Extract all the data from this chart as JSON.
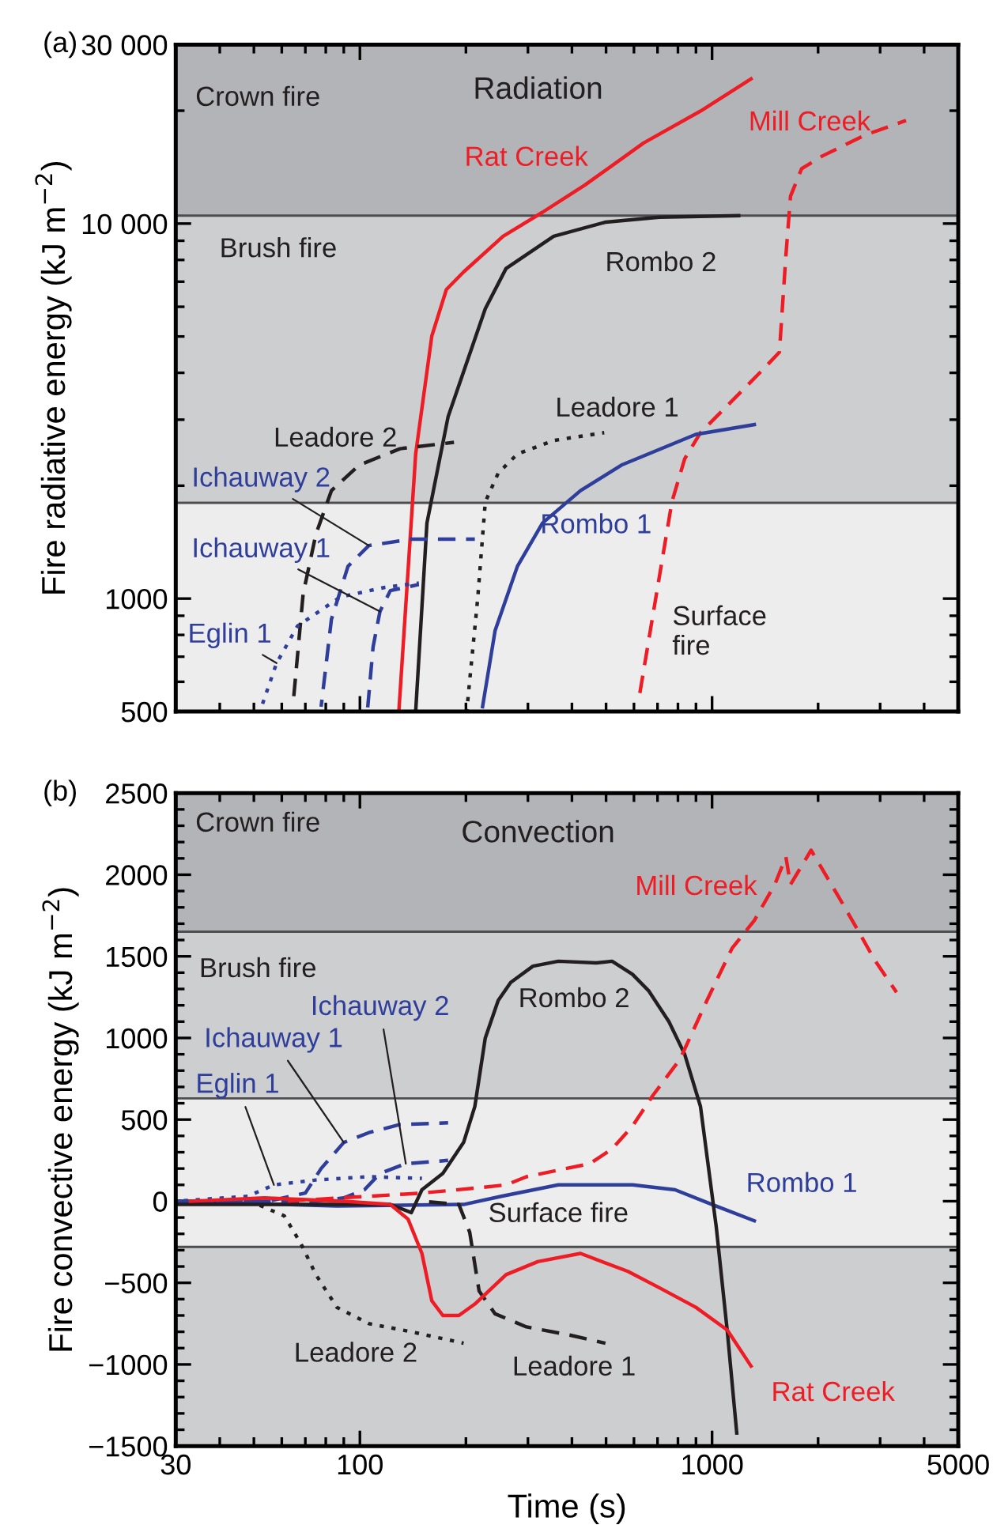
{
  "chart_data": [
    {
      "type": "line",
      "title": "(a)",
      "ylabel": "Fire radiative energy (kJ m$^{−2}$)",
      "log": "xy",
      "tick_labels": "y",
      "xlim": [
        30,
        5000
      ],
      "xticks": [
        30,
        100,
        1000,
        5000
      ],
      "ylim": [
        500,
        30000
      ],
      "yticks": [
        500,
        1000,
        {
          "value": 10000,
          "label": "10 000"
        },
        {
          "value": 30000,
          "label": "30 000"
        }
      ],
      "bands": [
        {
          "axis": "y",
          "from": 10500,
          "to": 30000,
          "label": "Crown fire",
          "color": "#b3b4b7"
        },
        {
          "axis": "y",
          "from": 1800,
          "to": 10500,
          "label": "Brush fire",
          "color": "#cdced0"
        },
        {
          "axis": "y",
          "from": 500,
          "to": 1800,
          "label": "Surface\nfire",
          "color": "#ededed"
        }
      ],
      "series": [
        {
          "name": "Rat Creek",
          "color": "#ee1c25",
          "line_style": "solid",
          "x": [
            129,
            144,
            160,
            176,
            197,
            255,
            330,
            436,
            639,
            927,
            1290
          ],
          "values": [
            500,
            2430,
            5010,
            6670,
            7430,
            9250,
            10720,
            12680,
            16400,
            19950,
            24300
          ]
        },
        {
          "name": "Rombo 2",
          "color": "#231f20",
          "line_style": "solid",
          "x": [
            144,
            155,
            178,
            227,
            260,
            355,
            499,
            708,
            1190
          ],
          "values": [
            500,
            1590,
            3055,
            5930,
            7590,
            9250,
            10090,
            10400,
            10500
          ]
        },
        {
          "name": "Mill Creek",
          "color": "#ee1c25",
          "line_style": "dashed",
          "x": [
            620,
            708,
            769,
            836,
            927,
            1105,
            1387,
            1553,
            1620,
            1670,
            1795,
            2055,
            2717,
            3555
          ],
          "values": [
            542,
            1140,
            1810,
            2360,
            2770,
            3270,
            4060,
            4540,
            8200,
            11830,
            14000,
            15140,
            17220,
            18840
          ]
        },
        {
          "name": "Leadore 1",
          "color": "#231f20",
          "line_style": "dotted",
          "x": [
            201,
            216,
            227,
            247,
            280,
            355,
            494
          ],
          "values": [
            500,
            1000,
            1810,
            2160,
            2430,
            2640,
            2770
          ]
        },
        {
          "name": "Rombo 1",
          "color": "#2e3e9a",
          "line_style": "solid",
          "x": [
            223,
            242,
            280,
            330,
            423,
            553,
            899,
            1318
          ],
          "values": [
            515,
            821,
            1219,
            1590,
            1940,
            2270,
            2740,
            2910
          ]
        },
        {
          "name": "Leadore 2",
          "color": "#231f20",
          "line_style": "dashed",
          "x": [
            64.5,
            69,
            75,
            83,
            99.5,
            130,
            185
          ],
          "values": [
            515,
            1030,
            1485,
            1940,
            2270,
            2510,
            2610
          ]
        },
        {
          "name": "Ichauway 2",
          "color": "#2e3e9a",
          "line_style": "dashed",
          "x": [
            77.6,
            83,
            92.5,
            106,
            140,
            212
          ],
          "values": [
            515,
            880,
            1219,
            1385,
            1440,
            1440
          ]
        },
        {
          "name": "Ichauway 1",
          "color": "#2e3e9a",
          "line_style": "dashed",
          "x": [
            105,
            109,
            114,
            122,
            147
          ],
          "values": [
            500,
            743,
            924,
            1050,
            1090
          ]
        },
        {
          "name": "Eglin 1",
          "color": "#2e3e9a",
          "line_style": "dotted",
          "x": [
            52,
            58,
            66.5,
            88,
            117,
            147
          ],
          "values": [
            500,
            673,
            845,
            1010,
            1070,
            1100
          ]
        }
      ],
      "annotations": [
        "Radiation"
      ]
    },
    {
      "type": "line",
      "title": "(b)",
      "ylabel": "Fire convective energy (kJ m$^{−2}$)",
      "xlabel": "Time (s)",
      "log": "x",
      "xlim": [
        30,
        5000
      ],
      "xticks": [
        30,
        100,
        1000,
        5000
      ],
      "ylim": [
        -1500,
        2500
      ],
      "yticks": [
        -1500,
        -1000,
        -500,
        0,
        500,
        1000,
        1500,
        2000,
        2500
      ],
      "bands": [
        {
          "axis": "y",
          "from": 1650,
          "to": 2500,
          "label": "Crown fire",
          "color": "#b3b4b7"
        },
        {
          "axis": "y",
          "from": -1500,
          "to": 1650,
          "label": "Brush fire",
          "color": "#cdced0"
        },
        {
          "axis": "y",
          "from": -280,
          "to": 630,
          "label": "Surface fire",
          "color": "#ededed"
        }
      ],
      "series": [
        {
          "name": "Rombo 1",
          "color": "#2e3e9a",
          "line_style": "solid",
          "x": [
            30,
            86,
            197,
            252,
            366,
            594,
            785,
            1000,
            1318
          ],
          "values": [
            0,
            -30,
            -20,
            30,
            100,
            100,
            70,
            -20,
            -120
          ]
        },
        {
          "name": "Leadore 2",
          "color": "#231f20",
          "line_style": "dotted",
          "x": [
            30,
            50,
            61,
            68,
            75,
            86,
            106,
            140,
            197
          ],
          "values": [
            0,
            -10,
            -90,
            -260,
            -450,
            -650,
            -750,
            -800,
            -870
          ]
        },
        {
          "name": "Leadore 1",
          "color": "#231f20",
          "line_style": "dashed",
          "x": [
            150,
            191,
            205,
            218,
            242,
            297,
            394,
            498
          ],
          "values": [
            0,
            -20,
            -190,
            -550,
            -690,
            -770,
            -820,
            -870
          ]
        },
        {
          "name": "Ichauway 1",
          "color": "#2e3e9a",
          "line_style": "dashed",
          "x": [
            30,
            55,
            70,
            77.6,
            90,
            106,
            130,
            178
          ],
          "values": [
            0,
            0,
            50,
            200,
            360,
            420,
            470,
            480
          ]
        },
        {
          "name": "Ichauway 2",
          "color": "#2e3e9a",
          "line_style": "dashed",
          "x": [
            30,
            75,
            90,
            103,
            114,
            135,
            178
          ],
          "values": [
            0,
            0,
            20,
            70,
            170,
            230,
            250
          ]
        },
        {
          "name": "Eglin 1",
          "color": "#2e3e9a",
          "line_style": "dotted",
          "x": [
            30,
            48,
            57,
            75,
            106,
            150
          ],
          "values": [
            0,
            30,
            100,
            130,
            150,
            140
          ]
        },
        {
          "name": "Rombo 2",
          "color": "#231f20",
          "line_style": "solid",
          "x": [
            30,
            122,
            140,
            150,
            172,
            197,
            212,
            227,
            247,
            268,
            310,
            366,
            469,
            520,
            594,
            660,
            754,
            836,
            927,
            1028,
            1105,
            1175
          ],
          "values": [
            -20,
            -20,
            -70,
            70,
            170,
            360,
            580,
            1000,
            1230,
            1340,
            1440,
            1470,
            1460,
            1470,
            1390,
            1290,
            1100,
            900,
            580,
            -160,
            -800,
            -1420
          ]
        },
        {
          "name": "Mill Creek",
          "color": "#ee1c25",
          "line_style": "dashed",
          "x": [
            61,
            106,
            150,
            212,
            260,
            297,
            450,
            520,
            594,
            680,
            811,
            967,
            1140,
            1318,
            1507,
            1620,
            1670,
            1910,
            2280,
            2610,
            2890,
            3340
          ],
          "values": [
            0,
            30,
            50,
            80,
            100,
            150,
            230,
            320,
            460,
            650,
            870,
            1230,
            1550,
            1720,
            1940,
            2110,
            1940,
            2150,
            1870,
            1650,
            1480,
            1280
          ]
        },
        {
          "name": "Rat Creek",
          "color": "#ee1c25",
          "line_style": "solid",
          "x": [
            33,
            53.5,
            90,
            122,
            137,
            150,
            160,
            172,
            191,
            212,
            260,
            320,
            423,
            577,
            708,
            899,
            1105,
            1290
          ],
          "values": [
            0,
            20,
            0,
            -20,
            -110,
            -320,
            -610,
            -700,
            -700,
            -630,
            -450,
            -370,
            -320,
            -430,
            -530,
            -650,
            -790,
            -1010
          ]
        }
      ],
      "annotations": [
        "Convection"
      ]
    }
  ]
}
